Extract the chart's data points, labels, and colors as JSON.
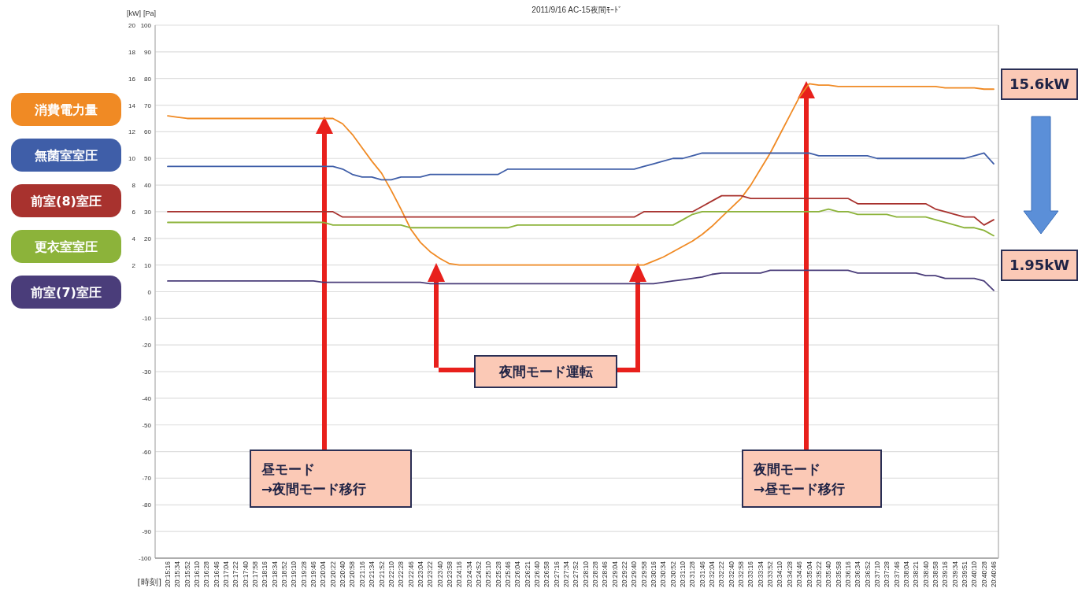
{
  "chart_data": {
    "type": "line",
    "title": "2011/9/16 AC-15夜間ﾓｰﾄﾞ",
    "xlabel": "[時刻]",
    "ylabel": "[Pa]",
    "y2label": "[kW]",
    "categories": [
      "20:15:16",
      "20:15:34",
      "20:15:52",
      "20:16:10",
      "20:16:28",
      "20:16:46",
      "20:17:04",
      "20:17:22",
      "20:17:40",
      "20:17:58",
      "20:18:16",
      "20:18:34",
      "20:18:52",
      "20:19:10",
      "20:19:28",
      "20:19:46",
      "20:20:04",
      "20:20:22",
      "20:20:40",
      "20:20:58",
      "20:21:16",
      "20:21:34",
      "20:21:52",
      "20:22:10",
      "20:22:28",
      "20:22:46",
      "20:23:04",
      "20:23:22",
      "20:23:40",
      "20:23:58",
      "20:24:16",
      "20:24:34",
      "20:24:52",
      "20:25:10",
      "20:25:28",
      "20:25:46",
      "20:26:04",
      "20:26:21",
      "20:26:40",
      "20:26:58",
      "20:27:16",
      "20:27:34",
      "20:27:52",
      "20:28:10",
      "20:28:28",
      "20:28:46",
      "20:29:04",
      "20:29:22",
      "20:29:40",
      "20:29:58",
      "20:30:16",
      "20:30:34",
      "20:30:52",
      "20:31:10",
      "20:31:28",
      "20:31:46",
      "20:32:04",
      "20:32:22",
      "20:32:40",
      "20:32:58",
      "20:33:16",
      "20:33:34",
      "20:33:52",
      "20:34:10",
      "20:34:28",
      "20:34:46",
      "20:35:04",
      "20:35:22",
      "20:35:40",
      "20:35:58",
      "20:36:16",
      "20:36:34",
      "20:36:52",
      "20:37:10",
      "20:37:28",
      "20:37:46",
      "20:38:04",
      "20:38:21",
      "20:38:40",
      "20:38:58",
      "20:39:16",
      "20:39:34",
      "20:39:51",
      "20:40:10",
      "20:40:28",
      "20:40:46"
    ],
    "series": [
      {
        "name": "消費電力量",
        "color": "#f08a24",
        "axis": "y2",
        "values": [
          13.2,
          13.1,
          13.0,
          13.0,
          13.0,
          13.0,
          13.0,
          13.0,
          13.0,
          13.0,
          13.0,
          13.0,
          13.0,
          13.0,
          13.0,
          13.0,
          13.0,
          13.0,
          12.6,
          11.8,
          10.8,
          9.8,
          8.9,
          7.6,
          6.2,
          4.7,
          3.7,
          3.0,
          2.5,
          2.1,
          2.0,
          2.0,
          2.0,
          2.0,
          2.0,
          2.0,
          2.0,
          2.0,
          2.0,
          2.0,
          2.0,
          2.0,
          2.0,
          2.0,
          2.0,
          2.0,
          2.0,
          2.0,
          2.0,
          2.0,
          2.3,
          2.6,
          3.0,
          3.4,
          3.8,
          4.3,
          4.9,
          5.6,
          6.3,
          7.0,
          8.0,
          9.2,
          10.4,
          11.8,
          13.2,
          14.6,
          15.6,
          15.5,
          15.5,
          15.4,
          15.4,
          15.4,
          15.4,
          15.4,
          15.4,
          15.4,
          15.4,
          15.4,
          15.4,
          15.4,
          15.3,
          15.3,
          15.3,
          15.3,
          15.2,
          15.2
        ]
      },
      {
        "name": "無菌室室圧",
        "color": "#3f5ea8",
        "values": [
          47,
          47,
          47,
          47,
          47,
          47,
          47,
          47,
          47,
          47,
          47,
          47,
          47,
          47,
          47,
          47,
          47,
          47,
          46,
          44,
          43,
          43,
          42,
          42,
          43,
          43,
          43,
          44,
          44,
          44,
          44,
          44,
          44,
          44,
          44,
          46,
          46,
          46,
          46,
          46,
          46,
          46,
          46,
          46,
          46,
          46,
          46,
          46,
          46,
          47,
          48,
          49,
          50,
          50,
          51,
          52,
          52,
          52,
          52,
          52,
          52,
          52,
          52,
          52,
          52,
          52,
          52,
          51,
          51,
          51,
          51,
          51,
          51,
          50,
          50,
          50,
          50,
          50,
          50,
          50,
          50,
          50,
          50,
          51,
          52,
          48
        ]
      },
      {
        "name": "前室(8)室圧",
        "color": "#a8322e",
        "values": [
          30,
          30,
          30,
          30,
          30,
          30,
          30,
          30,
          30,
          30,
          30,
          30,
          30,
          30,
          30,
          30,
          30,
          30,
          28,
          28,
          28,
          28,
          28,
          28,
          28,
          28,
          28,
          28,
          28,
          28,
          28,
          28,
          28,
          28,
          28,
          28,
          28,
          28,
          28,
          28,
          28,
          28,
          28,
          28,
          28,
          28,
          28,
          28,
          28,
          30,
          30,
          30,
          30,
          30,
          30,
          32,
          34,
          36,
          36,
          36,
          35,
          35,
          35,
          35,
          35,
          35,
          35,
          35,
          35,
          35,
          35,
          33,
          33,
          33,
          33,
          33,
          33,
          33,
          33,
          31,
          30,
          29,
          28,
          28,
          25,
          27
        ]
      },
      {
        "name": "更衣室室圧",
        "color": "#8cb33a",
        "values": [
          26,
          26,
          26,
          26,
          26,
          26,
          26,
          26,
          26,
          26,
          26,
          26,
          26,
          26,
          26,
          26,
          26,
          25,
          25,
          25,
          25,
          25,
          25,
          25,
          25,
          24,
          24,
          24,
          24,
          24,
          24,
          24,
          24,
          24,
          24,
          24,
          25,
          25,
          25,
          25,
          25,
          25,
          25,
          25,
          25,
          25,
          25,
          25,
          25,
          25,
          25,
          25,
          25,
          27,
          29,
          30,
          30,
          30,
          30,
          30,
          30,
          30,
          30,
          30,
          30,
          30,
          30,
          30,
          31,
          30,
          30,
          29,
          29,
          29,
          29,
          28,
          28,
          28,
          28,
          27,
          26,
          25,
          24,
          24,
          23,
          21
        ]
      },
      {
        "name": "前室(7)室圧",
        "color": "#4a3d7a",
        "values": [
          4,
          4,
          4,
          4,
          4,
          4,
          4,
          4,
          4,
          4,
          4,
          4,
          4,
          4,
          4,
          4,
          3.5,
          3.5,
          3.5,
          3.5,
          3.5,
          3.5,
          3.5,
          3.5,
          3.5,
          3.5,
          3.5,
          3,
          3,
          3,
          3,
          3,
          3,
          3,
          3,
          3,
          3,
          3,
          3,
          3,
          3,
          3,
          3,
          3,
          3,
          3,
          3,
          3,
          3,
          3,
          3,
          3.5,
          4,
          4.5,
          5,
          5.5,
          6.5,
          7,
          7,
          7,
          7,
          7,
          8,
          8,
          8,
          8,
          8,
          8,
          8,
          8,
          8,
          7,
          7,
          7,
          7,
          7,
          7,
          7,
          6,
          6,
          5,
          5,
          5,
          5,
          4,
          0.5
        ]
      }
    ],
    "ylim": [
      -100,
      100
    ],
    "yticks": [
      -100,
      -90,
      -80,
      -70,
      -60,
      -50,
      -40,
      -30,
      -20,
      -10,
      0,
      10,
      20,
      30,
      40,
      50,
      60,
      70,
      80,
      90,
      100
    ],
    "y2lim": [
      -20,
      20
    ],
    "y2ticks": [
      2,
      4,
      6,
      8,
      10,
      12,
      14,
      16,
      18,
      20
    ],
    "grid": "y",
    "legend": "left",
    "annotations": [
      "15.6kW",
      "1.95kW",
      "夜間モード運転",
      "昼モード\n→夜間モード移行",
      "夜間モード\n→昼モード移行"
    ]
  }
}
